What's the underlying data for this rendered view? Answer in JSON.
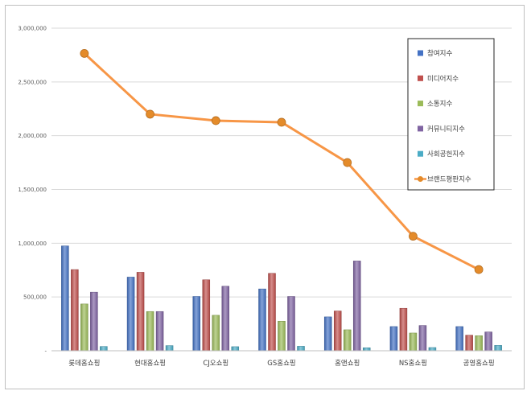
{
  "chart_data": {
    "type": "bar",
    "title": "",
    "xlabel": "",
    "ylabel": "",
    "ylim": [
      0,
      3000000
    ],
    "yticks": [
      {
        "value": 0,
        "label": "-"
      },
      {
        "value": 500000,
        "label": "500,000"
      },
      {
        "value": 1000000,
        "label": "1,000,000"
      },
      {
        "value": 1500000,
        "label": "1,500,000"
      },
      {
        "value": 2000000,
        "label": "2,000,000"
      },
      {
        "value": 2500000,
        "label": "2,500,000"
      },
      {
        "value": 3000000,
        "label": "3,000,000"
      }
    ],
    "grid": "horizontal",
    "legend_position": "top-right",
    "categories": [
      "롯데홈쇼핑",
      "현대홈쇼핑",
      "CJ오쇼핑",
      "GS홈쇼핑",
      "홈앤쇼핑",
      "NS홈쇼핑",
      "공영홈쇼핑"
    ],
    "series": [
      {
        "name": "참여지수",
        "kind": "bar",
        "color": "#4472c4",
        "values": [
          975000,
          685000,
          505000,
          575000,
          315000,
          225000,
          225000
        ]
      },
      {
        "name": "미디어지수",
        "kind": "bar",
        "color": "#c0504d",
        "values": [
          755000,
          730000,
          660000,
          720000,
          370000,
          395000,
          145000
        ]
      },
      {
        "name": "소통지수",
        "kind": "bar",
        "color": "#9bbb59",
        "values": [
          435000,
          365000,
          330000,
          275000,
          195000,
          165000,
          140000
        ]
      },
      {
        "name": "커뮤니티지수",
        "kind": "bar",
        "color": "#8064a2",
        "values": [
          545000,
          365000,
          600000,
          505000,
          835000,
          235000,
          175000
        ]
      },
      {
        "name": "사회공헌지수",
        "kind": "bar",
        "color": "#4bacc6",
        "values": [
          40000,
          48000,
          38000,
          42000,
          28000,
          30000,
          50000
        ]
      },
      {
        "name": "브랜드평판지수",
        "kind": "line",
        "color": "#f79646",
        "marker_color": "#e48b2a",
        "values": [
          2765000,
          2200000,
          2140000,
          2125000,
          1750000,
          1065000,
          755000
        ]
      }
    ]
  }
}
